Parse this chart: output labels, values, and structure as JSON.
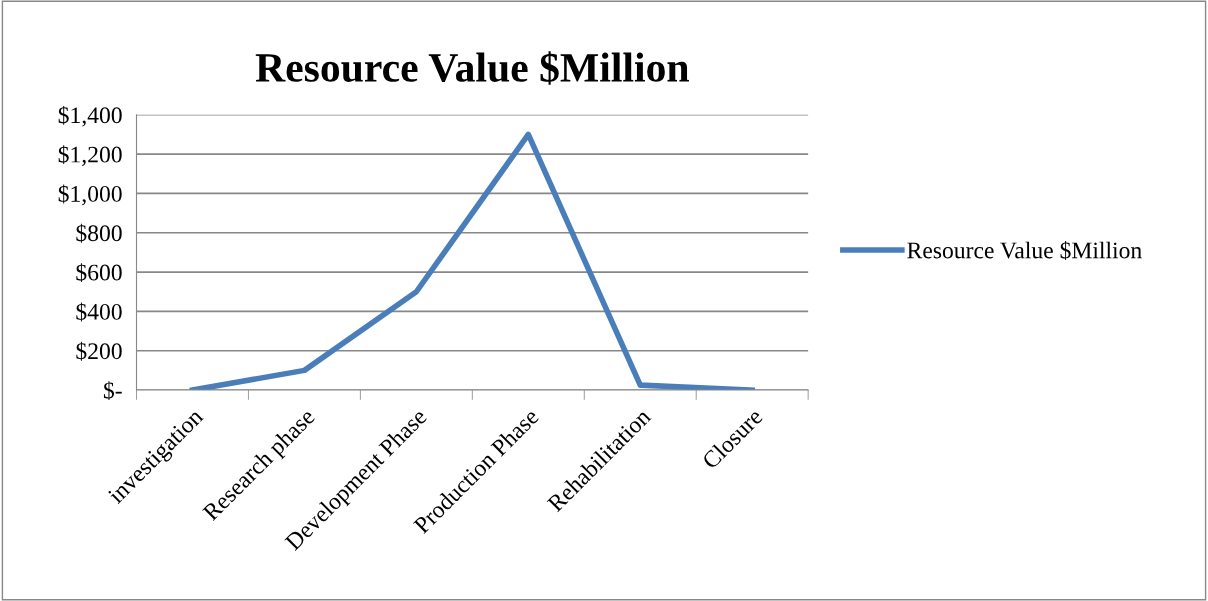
{
  "chart_data": {
    "type": "line",
    "title": "Resource Value $Million",
    "categories": [
      "investigation",
      "Research phase",
      "Development Phase",
      "Production Phase",
      "Rehabilitation",
      "Closure"
    ],
    "series": [
      {
        "name": "Resource Value $Million",
        "color": "#4a7ebb",
        "values": [
          0,
          100,
          500,
          1300,
          25,
          0
        ]
      }
    ],
    "ylim": [
      0,
      1400
    ],
    "yticks": [
      {
        "value": 0,
        "label": "$-"
      },
      {
        "value": 200,
        "label": "$200"
      },
      {
        "value": 400,
        "label": "$400"
      },
      {
        "value": 600,
        "label": "$600"
      },
      {
        "value": 800,
        "label": "$800"
      },
      {
        "value": 1000,
        "label": "$1,000"
      },
      {
        "value": 1200,
        "label": "$1,200"
      },
      {
        "value": 1400,
        "label": "$1,400"
      }
    ],
    "grid": "y",
    "legend": "right",
    "marker": "none",
    "line_style": "solid"
  }
}
